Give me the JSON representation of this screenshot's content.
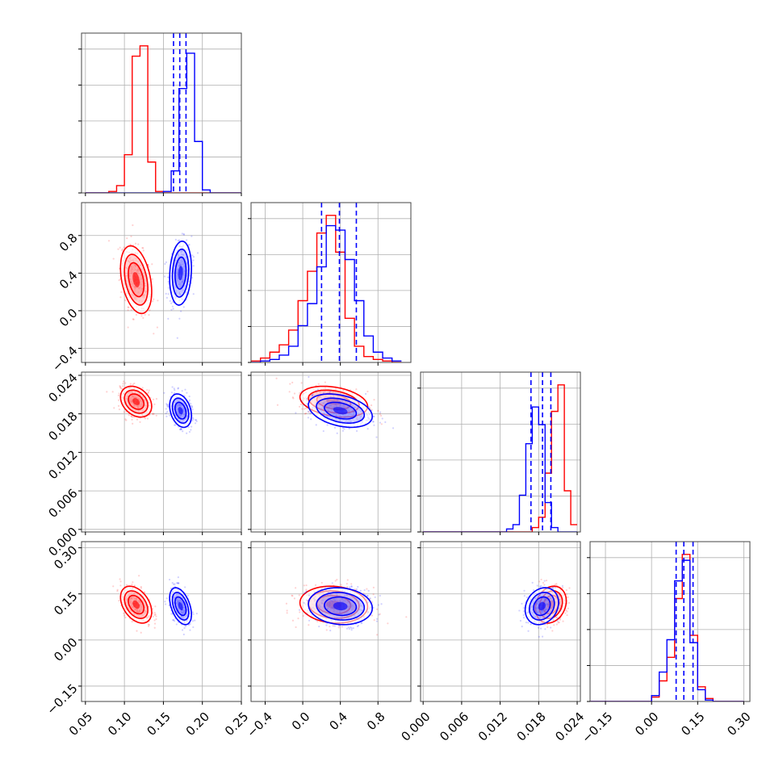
{
  "chart_data": {
    "type": "corner",
    "grid": true,
    "series": [
      {
        "name": "",
        "color": "#ff0000",
        "means": [
          0.115,
          0.33,
          0.0199,
          0.115
        ],
        "stds": [
          0.01,
          0.18,
          0.0012,
          0.03
        ],
        "corr": [
          [
            0,
            1,
            -0.35
          ],
          [
            0,
            2,
            -0.3
          ],
          [
            0,
            3,
            -0.4
          ],
          [
            1,
            2,
            -0.3
          ],
          [
            1,
            3,
            -0.1
          ],
          [
            2,
            3,
            0.2
          ]
        ]
      },
      {
        "name": "",
        "color": "#0000ff",
        "means": [
          0.172,
          0.4,
          0.0185,
          0.11
        ],
        "stds": [
          0.007,
          0.17,
          0.0013,
          0.03
        ],
        "corr": [
          [
            0,
            1,
            0.15
          ],
          [
            0,
            2,
            -0.3
          ],
          [
            0,
            3,
            -0.45
          ],
          [
            1,
            2,
            -0.35
          ],
          [
            1,
            3,
            -0.1
          ],
          [
            2,
            3,
            0.2
          ]
        ]
      }
    ],
    "quantile_lines": {
      "color": "#0000ff",
      "values": [
        [
          0.163,
          0.171,
          0.179
        ],
        [
          0.2,
          0.39,
          0.57
        ],
        [
          0.0168,
          0.0186,
          0.0199
        ],
        [
          0.08,
          0.105,
          0.135
        ]
      ]
    },
    "params": [
      {
        "range": [
          0.045,
          0.25
        ],
        "ticks": [
          0.05,
          0.1,
          0.15,
          0.2,
          0.25
        ],
        "tick_labels": [
          "0.05",
          "0.10",
          "0.15",
          "0.20",
          "0.25"
        ]
      },
      {
        "range": [
          -0.55,
          1.15
        ],
        "ticks": [
          -0.4,
          0.0,
          0.4,
          0.8
        ],
        "tick_labels": [
          "−0.4",
          "0.0",
          "0.4",
          "0.8"
        ]
      },
      {
        "range": [
          -0.0004,
          0.0245
        ],
        "ticks": [
          0.0,
          0.006,
          0.012,
          0.018,
          0.024
        ],
        "tick_labels": [
          "0.000",
          "0.006",
          "0.012",
          "0.018",
          "0.024"
        ]
      },
      {
        "range": [
          -0.2,
          0.32
        ],
        "ticks": [
          -0.15,
          0.0,
          0.15,
          0.3
        ],
        "tick_labels": [
          "−0.15",
          "0.00",
          "0.15",
          "0.30"
        ]
      }
    ],
    "histograms": [
      {
        "edges": [
          0.05,
          0.06,
          0.07,
          0.08,
          0.09,
          0.1,
          0.11,
          0.12,
          0.13,
          0.14,
          0.15,
          0.16,
          0.17,
          0.18,
          0.19,
          0.2,
          0.21,
          0.22,
          0.23,
          0.24,
          0.25
        ],
        "red": [
          0,
          0,
          0,
          0.01,
          0.05,
          0.26,
          0.93,
          1.0,
          0.21,
          0.01,
          0,
          0,
          0,
          0,
          0,
          0,
          0,
          0,
          0,
          0
        ],
        "blue": [
          0,
          0,
          0,
          0,
          0,
          0,
          0,
          0,
          0,
          0,
          0.01,
          0.15,
          0.71,
          0.95,
          0.35,
          0.02,
          0,
          0,
          0,
          0
        ]
      },
      {
        "edges": [
          -0.55,
          -0.45,
          -0.35,
          -0.25,
          -0.15,
          -0.05,
          0.05,
          0.15,
          0.25,
          0.35,
          0.45,
          0.55,
          0.65,
          0.75,
          0.85,
          0.95,
          1.05
        ],
        "red": [
          0.01,
          0.03,
          0.07,
          0.12,
          0.22,
          0.42,
          0.62,
          0.88,
          1.0,
          0.75,
          0.3,
          0.11,
          0.04,
          0.02,
          0.01,
          0
        ],
        "blue": [
          0,
          0.01,
          0.02,
          0.05,
          0.11,
          0.25,
          0.4,
          0.65,
          0.93,
          0.9,
          0.7,
          0.42,
          0.18,
          0.07,
          0.03,
          0.01
        ]
      },
      {
        "edges": [
          0.0,
          0.001,
          0.002,
          0.003,
          0.004,
          0.005,
          0.006,
          0.007,
          0.008,
          0.009,
          0.01,
          0.011,
          0.012,
          0.013,
          0.014,
          0.015,
          0.016,
          0.017,
          0.018,
          0.019,
          0.02,
          0.021,
          0.022,
          0.023,
          0.024
        ],
        "red": [
          0,
          0,
          0,
          0,
          0,
          0,
          0,
          0,
          0,
          0,
          0,
          0,
          0,
          0,
          0,
          0,
          0,
          0.03,
          0.1,
          0.4,
          0.82,
          1.0,
          0.28,
          0.05
        ],
        "blue": [
          0,
          0,
          0,
          0,
          0,
          0,
          0,
          0,
          0,
          0,
          0,
          0,
          0,
          0.02,
          0.05,
          0.25,
          0.6,
          0.85,
          0.73,
          0.2,
          0.03,
          0,
          0,
          0
        ]
      },
      {
        "edges": [
          -0.2,
          -0.175,
          -0.15,
          -0.125,
          -0.1,
          -0.075,
          -0.05,
          -0.025,
          0.0,
          0.025,
          0.05,
          0.075,
          0.1,
          0.125,
          0.15,
          0.175,
          0.2,
          0.225,
          0.25,
          0.275,
          0.3
        ],
        "red": [
          0,
          0,
          0,
          0,
          0,
          0,
          0,
          0,
          0.03,
          0.14,
          0.3,
          0.7,
          1.0,
          0.45,
          0.1,
          0.02,
          0,
          0,
          0,
          0
        ],
        "blue": [
          0,
          0,
          0,
          0,
          0,
          0,
          0,
          0,
          0.04,
          0.2,
          0.42,
          0.82,
          0.96,
          0.4,
          0.08,
          0.01,
          0,
          0,
          0,
          0
        ]
      }
    ]
  }
}
